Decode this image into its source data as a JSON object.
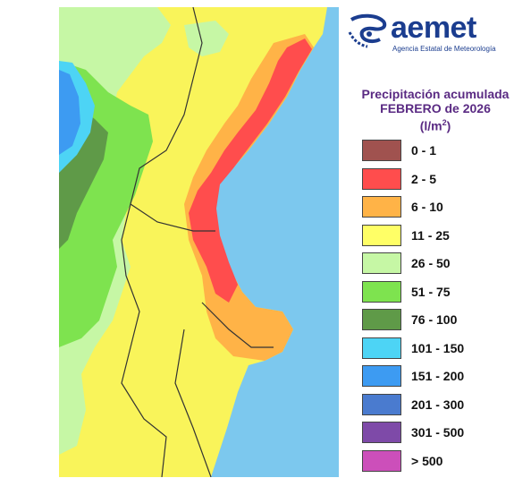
{
  "logo": {
    "name": "aemet",
    "subtitle": "Agencia Estatal de Meteorología"
  },
  "title": {
    "line1": "Precipitación acumulada",
    "line2": "FEBRERO de 2026",
    "unit": "(l/m",
    "unit_sup": "2",
    "unit_close": ")"
  },
  "legend": [
    {
      "label": "0 - 1",
      "color": "#a0524f"
    },
    {
      "label": "2 - 5",
      "color": "#ff4d4d"
    },
    {
      "label": "6 - 10",
      "color": "#ffb347"
    },
    {
      "label": "11 - 25",
      "color": "#ffff66"
    },
    {
      "label": "26 - 50",
      "color": "#c6f7a5"
    },
    {
      "label": "51 - 75",
      "color": "#7ee34f"
    },
    {
      "label": "76 - 100",
      "color": "#5f9a48"
    },
    {
      "label": "101 - 150",
      "color": "#4dd4f5"
    },
    {
      "label": "151 - 200",
      "color": "#3d9bf2"
    },
    {
      "label": "201 - 300",
      "color": "#4a7bcf"
    },
    {
      "label": "301 - 500",
      "color": "#7e4aa8"
    },
    {
      "label": "> 500",
      "color": "#cc4fba"
    }
  ],
  "map_colors": {
    "sea": "#7cc8ee",
    "border": "#333333"
  }
}
